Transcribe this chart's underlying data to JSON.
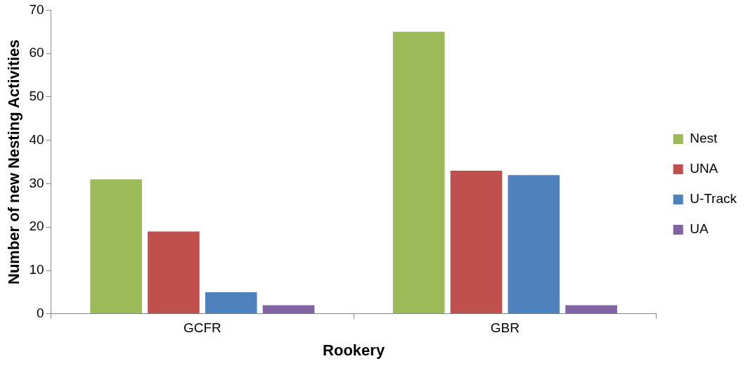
{
  "chart_data": {
    "type": "bar",
    "xlabel": "Rookery",
    "ylabel": "Number of new Nesting Activities",
    "categories": [
      "GCFR",
      "GBR"
    ],
    "series": [
      {
        "name": "Nest",
        "color": "#9bbb59",
        "values": [
          31,
          65
        ]
      },
      {
        "name": "UNA",
        "color": "#c0504d",
        "values": [
          19,
          33
        ]
      },
      {
        "name": "U-Track",
        "color": "#4f81bd",
        "values": [
          5,
          32
        ]
      },
      {
        "name": "UA",
        "color": "#8064a2",
        "values": [
          2,
          2
        ]
      }
    ],
    "ylim": [
      0,
      70
    ],
    "yticks": [
      0,
      10,
      20,
      30,
      40,
      50,
      60,
      70
    ],
    "grid": false,
    "legend": "right"
  }
}
